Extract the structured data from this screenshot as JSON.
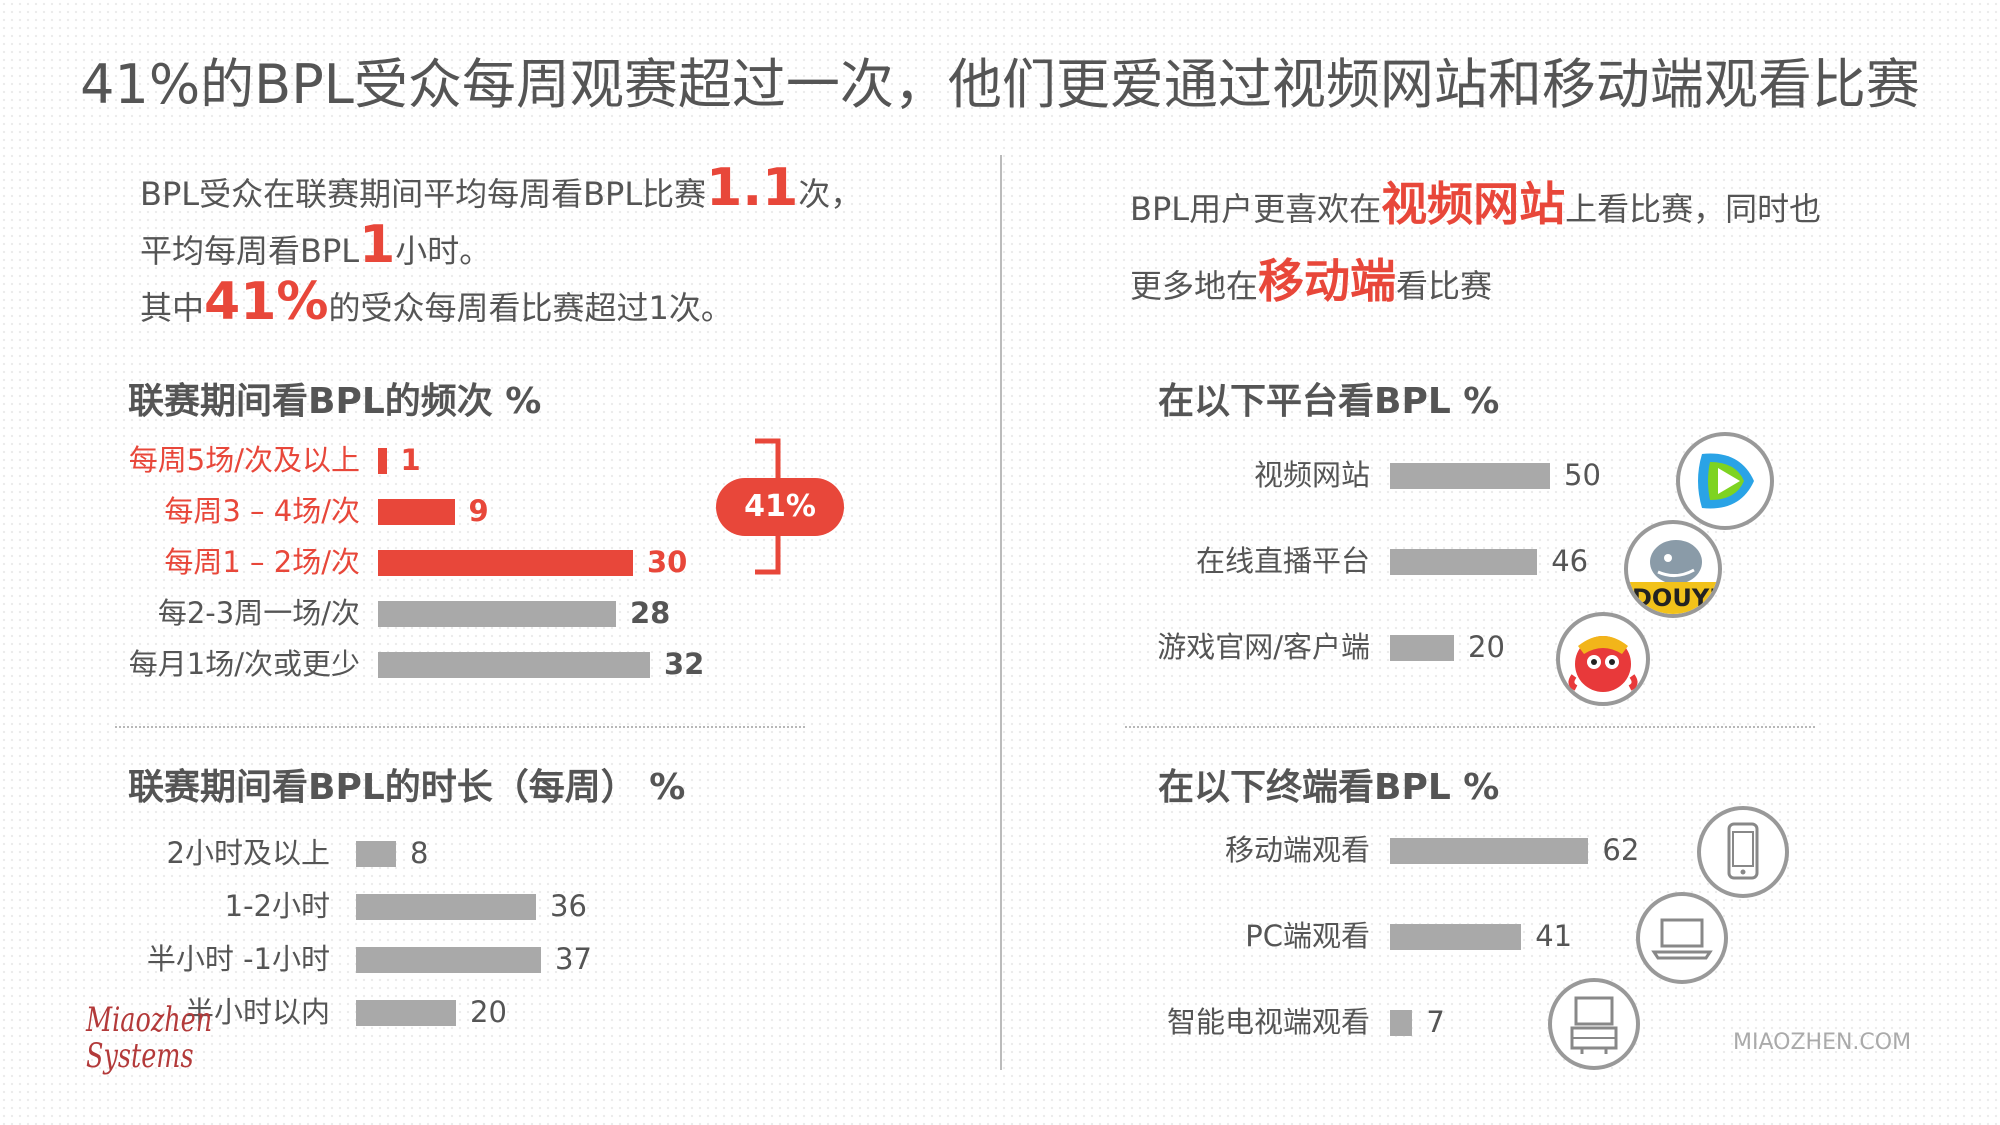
{
  "title": "41%的BPL受众每周观赛超过一次，他们更爱通过视频网站和移动端观看比赛",
  "left_intro": {
    "line1_pre": "BPL受众在联赛期间平均每周看BPL比赛",
    "line1_hl": "1.1",
    "line1_post": "次，",
    "line2_pre": "平均每周看BPL",
    "line2_hl": "1",
    "line2_post": "小时。",
    "line3_pre": "其中",
    "line3_hl": "41%",
    "line3_post": "的受众每周看比赛超过1次。"
  },
  "right_intro": {
    "line1_pre": "BPL用户更喜欢在",
    "line1_hl": "视频网站",
    "line1_post": "上看比赛，同时也",
    "line2_pre": "更多地在",
    "line2_hl": "移动端",
    "line2_post": "看比赛"
  },
  "badge": "41%",
  "footer": {
    "site": "MIAOZHEN.COM",
    "logo_line1": "Miaozhen",
    "logo_line2": "Systems"
  },
  "colors": {
    "accent": "#e8473a",
    "bar_gray": "#a9a9a9"
  },
  "chart_data": [
    {
      "type": "bar",
      "orientation": "horizontal",
      "title": "联赛期间看BPL的频次 %",
      "categories": [
        "每周5场/次及以上",
        "每周3 – 4场/次",
        "每周1 – 2场/次",
        "每2-3周一场/次",
        "每月1场/次或更少"
      ],
      "values": [
        1,
        9,
        30,
        28,
        32
      ],
      "highlight": [
        true,
        true,
        true,
        false,
        false
      ]
    },
    {
      "type": "bar",
      "orientation": "horizontal",
      "title": "联赛期间看BPL的时长（每周） %",
      "categories": [
        "2小时及以上",
        "1-2小时",
        "半小时 -1小时",
        "半小时以内"
      ],
      "values": [
        8,
        36,
        37,
        20
      ]
    },
    {
      "type": "bar",
      "orientation": "horizontal",
      "title": "在以下平台看BPL %",
      "categories": [
        "视频网站",
        "在线直播平台",
        "游戏官网/客户端"
      ],
      "values": [
        50,
        46,
        20
      ],
      "icons": [
        "tencent-video-icon",
        "douyu-icon",
        "game-mascot-icon"
      ]
    },
    {
      "type": "bar",
      "orientation": "horizontal",
      "title": "在以下终端看BPL %",
      "categories": [
        "移动端观看",
        "PC端观看",
        "智能电视端观看"
      ],
      "values": [
        62,
        41,
        7
      ],
      "icons": [
        "smartphone-icon",
        "laptop-icon",
        "tv-icon"
      ]
    }
  ]
}
